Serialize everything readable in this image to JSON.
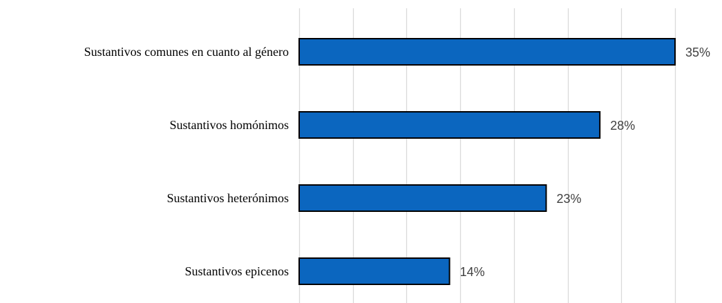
{
  "chart_data": {
    "type": "bar",
    "orientation": "horizontal",
    "categories": [
      "Sustantivos comunes en cuanto al género",
      "Sustantivos homónimos",
      "Sustantivos heterónimos",
      "Sustantivos epicenos"
    ],
    "values": [
      35,
      28,
      23,
      14
    ],
    "value_labels": [
      "35%",
      "28%",
      "23%",
      "14%"
    ],
    "title": "",
    "xlabel": "",
    "ylabel": "",
    "xlim": [
      0,
      35
    ],
    "grid": true,
    "gridline_step": 5,
    "legend": "none",
    "colors": {
      "bar_fill": "#0b66bf",
      "bar_stroke": "#000000",
      "grid": "#d9d9d9",
      "value_text": "#404040",
      "category_text": "#000000"
    }
  }
}
